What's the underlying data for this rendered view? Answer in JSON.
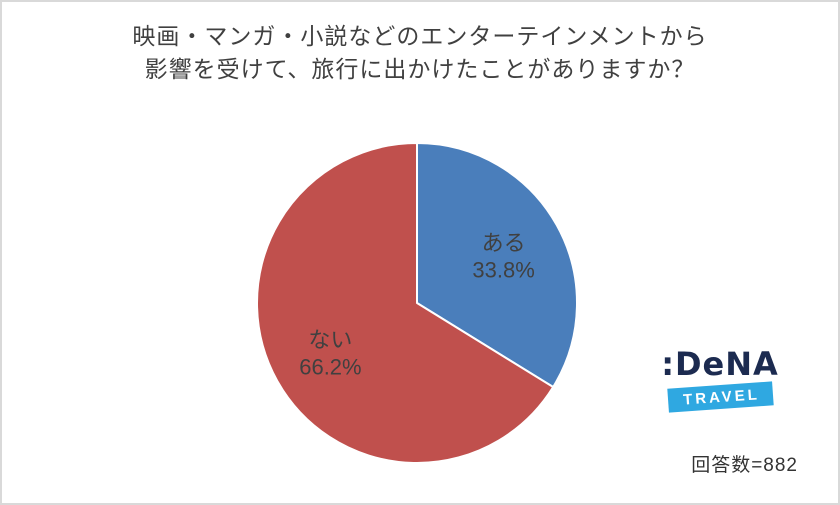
{
  "title": {
    "line1": "映画・マンガ・小説などのエンターテインメントから",
    "line2": "影響を受けて、旅行に出かけたことがありますか？"
  },
  "chart_data": {
    "type": "pie",
    "title": "映画・マンガ・小説などのエンターテインメントから影響を受けて、旅行に出かけたことがありますか？",
    "start_angle_deg": 0,
    "direction": "clockwise",
    "slices": [
      {
        "label": "ある",
        "value": 33.8,
        "display": "33.8%",
        "color": "#4a7ebb"
      },
      {
        "label": "ない",
        "value": 66.2,
        "display": "66.2%",
        "color": "#c0504d"
      }
    ],
    "slice_border_color": "#ffffff",
    "label_color": "#404040",
    "respondents_note": "回答数=882"
  },
  "logo": {
    "brand": ":DeNA",
    "sub": "TRAVEL"
  },
  "footer": {
    "respondents": "回答数=882"
  }
}
